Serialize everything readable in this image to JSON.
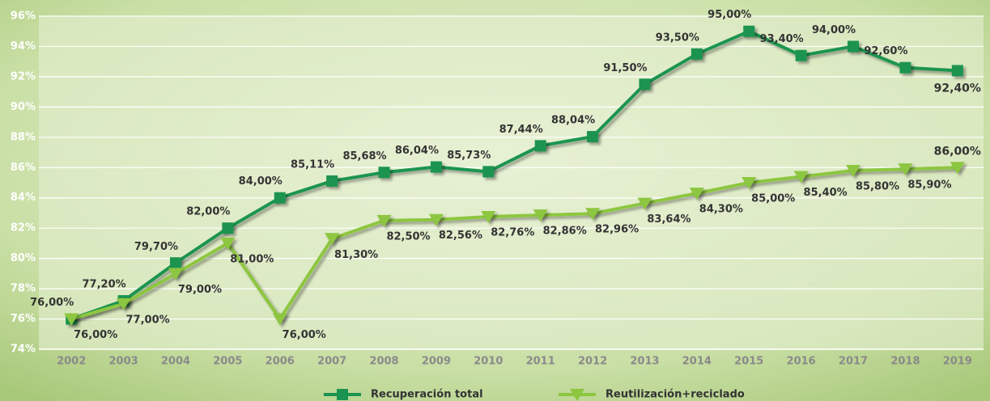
{
  "chart_data": {
    "type": "line",
    "categories": [
      "2002",
      "2003",
      "2004",
      "2005",
      "2006",
      "2007",
      "2008",
      "2009",
      "2010",
      "2011",
      "2012",
      "2013",
      "2014",
      "2015",
      "2016",
      "2017",
      "2018",
      "2019"
    ],
    "series": [
      {
        "name": "Recuperación total",
        "color": "#1a9450",
        "marker": "square",
        "values": [
          76.0,
          77.2,
          79.7,
          82.0,
          84.0,
          85.11,
          85.68,
          86.04,
          85.73,
          87.44,
          88.04,
          91.5,
          93.5,
          95.0,
          93.4,
          94.0,
          92.6,
          92.4
        ],
        "value_labels": [
          "76,00%",
          "77,20%",
          "79,70%",
          "82,00%",
          "84,00%",
          "85,11%",
          "85,68%",
          "86,04%",
          "85,73%",
          "87,44%",
          "88,04%",
          "91,50%",
          "93,50%",
          "95,00%",
          "93,40%",
          "94,00%",
          "92,60%",
          "92,40%"
        ]
      },
      {
        "name": "Reutilización+reciclado",
        "color": "#8dc63f",
        "marker": "triangle-down",
        "values": [
          76.0,
          77.0,
          79.0,
          81.0,
          76.0,
          81.3,
          82.5,
          82.56,
          82.76,
          82.86,
          82.96,
          83.64,
          84.3,
          85.0,
          85.4,
          85.8,
          85.9,
          86.0
        ],
        "value_labels": [
          "76,00%",
          "77,00%",
          "79,00%",
          "81,00%",
          "76,00%",
          "81,30%",
          "82,50%",
          "82,56%",
          "82,76%",
          "82,86%",
          "82,96%",
          "83,64%",
          "84,30%",
          "85,00%",
          "85,40%",
          "85,80%",
          "85,90%",
          "86,00%"
        ]
      }
    ],
    "ylim": [
      74,
      96
    ],
    "yticks": [
      {
        "value": 74,
        "label": "74%"
      },
      {
        "value": 76,
        "label": "76%"
      },
      {
        "value": 78,
        "label": "78%"
      },
      {
        "value": 80,
        "label": "80%"
      },
      {
        "value": 82,
        "label": "82%"
      },
      {
        "value": 84,
        "label": "84%"
      },
      {
        "value": 86,
        "label": "86%"
      },
      {
        "value": 88,
        "label": "88%"
      },
      {
        "value": 90,
        "label": "90%"
      },
      {
        "value": 92,
        "label": "92%"
      },
      {
        "value": 94,
        "label": "94%"
      },
      {
        "value": 96,
        "label": "96%"
      }
    ],
    "grid": true,
    "legend": "bottom"
  }
}
